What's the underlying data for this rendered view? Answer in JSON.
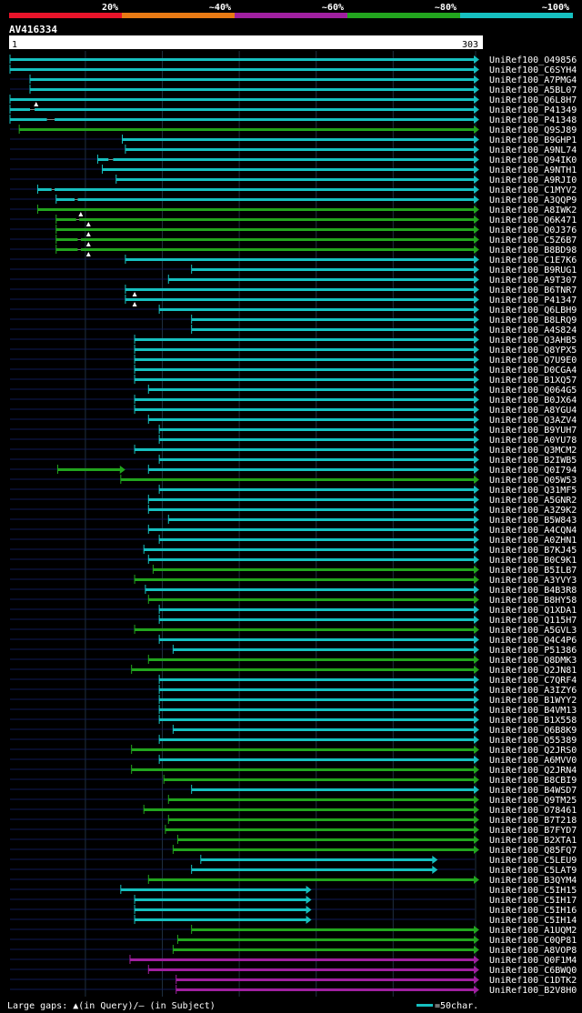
{
  "chart_data": {
    "type": "alignment-bars",
    "title": "AV416334",
    "legend": [
      {
        "label": "20%",
        "color": "#e8142a"
      },
      {
        "label": "~40%",
        "color": "#e87a14"
      },
      {
        "label": "~60%",
        "color": "#a020a0"
      },
      {
        "label": "~80%",
        "color": "#22a51e"
      },
      {
        "label": "~100%",
        "color": "#16c0c0"
      }
    ],
    "query_start": "1",
    "query_end": "303",
    "axis_max": 303,
    "tick_positions": [
      50,
      100,
      150,
      200,
      250
    ],
    "hits": [
      {
        "name": "UniRef100_O49856",
        "color": "#16c0c0",
        "s": 1,
        "e": 303
      },
      {
        "name": "UniRef100_C6SYH4",
        "color": "#16c0c0",
        "s": 1,
        "e": 303
      },
      {
        "name": "UniRef100_A7PMG4",
        "color": "#16c0c0",
        "s": 14,
        "e": 303
      },
      {
        "name": "UniRef100_A5BL07",
        "color": "#16c0c0",
        "s": 14,
        "e": 303
      },
      {
        "name": "UniRef100_Q6L8H7",
        "color": "#16c0c0",
        "s": 1,
        "e": 303,
        "qgap": 18
      },
      {
        "name": "UniRef100_P41349",
        "color": "#16c0c0",
        "s": 1,
        "e": 303,
        "sgap": [
          14,
          17
        ]
      },
      {
        "name": "UniRef100_P41348",
        "color": "#16c0c0",
        "s": 1,
        "e": 303,
        "sgap": [
          25,
          30
        ]
      },
      {
        "name": "UniRef100_Q9SJ89",
        "color": "#22a51e",
        "s": 7,
        "e": 303
      },
      {
        "name": "UniRef100_B9GHP1",
        "color": "#16c0c0",
        "s": 74,
        "e": 303
      },
      {
        "name": "UniRef100_A9NL74",
        "color": "#16c0c0",
        "s": 76,
        "e": 303
      },
      {
        "name": "UniRef100_Q94IK0",
        "color": "#16c0c0",
        "s": 58,
        "e": 303,
        "sgap": [
          65,
          68
        ]
      },
      {
        "name": "UniRef100_A9NTH1",
        "color": "#16c0c0",
        "s": 61,
        "e": 303
      },
      {
        "name": "UniRef100_A9RJI0",
        "color": "#16c0c0",
        "s": 70,
        "e": 303
      },
      {
        "name": "UniRef100_C1MYV2",
        "color": "#16c0c0",
        "s": 19,
        "e": 303,
        "sgap": [
          28,
          30
        ]
      },
      {
        "name": "UniRef100_A3QQP9",
        "color": "#16c0c0",
        "s": 31,
        "e": 303,
        "sgap": [
          43,
          45
        ]
      },
      {
        "name": "UniRef100_A8IWK2",
        "color": "#22a51e",
        "s": 19,
        "e": 303,
        "qgap": 47
      },
      {
        "name": "UniRef100_Q6K471",
        "color": "#22a51e",
        "s": 31,
        "e": 303,
        "qgap": 52,
        "sgap": [
          44,
          46
        ]
      },
      {
        "name": "UniRef100_Q0J376",
        "color": "#22a51e",
        "s": 31,
        "e": 303,
        "qgap": 52
      },
      {
        "name": "UniRef100_C5Z6B7",
        "color": "#22a51e",
        "s": 31,
        "e": 303,
        "qgap": 52,
        "sgap": [
          45,
          47
        ]
      },
      {
        "name": "UniRef100_B8BD98",
        "color": "#22a51e",
        "s": 31,
        "e": 303,
        "qgap": 52,
        "sgap": [
          45,
          47
        ]
      },
      {
        "name": "UniRef100_C1E7K6",
        "color": "#16c0c0",
        "s": 76,
        "e": 303
      },
      {
        "name": "UniRef100_B9RUG1",
        "color": "#16c0c0",
        "s": 119,
        "e": 303
      },
      {
        "name": "UniRef100_A9T307",
        "color": "#16c0c0",
        "s": 104,
        "e": 303
      },
      {
        "name": "UniRef100_B6TNR7",
        "color": "#16c0c0",
        "s": 76,
        "e": 303,
        "qgap": 82
      },
      {
        "name": "UniRef100_P41347",
        "color": "#16c0c0",
        "s": 76,
        "e": 303,
        "qgap": 82
      },
      {
        "name": "UniRef100_Q6LBH9",
        "color": "#16c0c0",
        "s": 98,
        "e": 303
      },
      {
        "name": "UniRef100_B8LRQ9",
        "color": "#16c0c0",
        "s": 119,
        "e": 303
      },
      {
        "name": "UniRef100_A4S824",
        "color": "#16c0c0",
        "s": 119,
        "e": 303
      },
      {
        "name": "UniRef100_Q3AHB5",
        "color": "#16c0c0",
        "s": 82,
        "e": 303
      },
      {
        "name": "UniRef100_Q8YPX5",
        "color": "#16c0c0",
        "s": 82,
        "e": 303
      },
      {
        "name": "UniRef100_Q7U9E0",
        "color": "#16c0c0",
        "s": 82,
        "e": 303
      },
      {
        "name": "UniRef100_D0CGA4",
        "color": "#16c0c0",
        "s": 82,
        "e": 303
      },
      {
        "name": "UniRef100_B1XQ57",
        "color": "#16c0c0",
        "s": 82,
        "e": 303
      },
      {
        "name": "UniRef100_Q064G5",
        "color": "#16c0c0",
        "s": 91,
        "e": 303
      },
      {
        "name": "UniRef100_B0JX64",
        "color": "#16c0c0",
        "s": 82,
        "e": 303
      },
      {
        "name": "UniRef100_A8YGU4",
        "color": "#16c0c0",
        "s": 82,
        "e": 303
      },
      {
        "name": "UniRef100_Q3AZV4",
        "color": "#16c0c0",
        "s": 91,
        "e": 303
      },
      {
        "name": "UniRef100_B9YUH7",
        "color": "#16c0c0",
        "s": 98,
        "e": 303
      },
      {
        "name": "UniRef100_A0YU78",
        "color": "#16c0c0",
        "s": 98,
        "e": 303
      },
      {
        "name": "UniRef100_Q3MCM2",
        "color": "#16c0c0",
        "s": 82,
        "e": 303
      },
      {
        "name": "UniRef100_B2IWB5",
        "color": "#16c0c0",
        "s": 98,
        "e": 303
      },
      {
        "name": "UniRef100_Q0I794",
        "color": "#22a51e",
        "s": 32,
        "e": 73
      },
      {
        "name": "UniRef100_Q0I794",
        "color": "#16c0c0",
        "s": 91,
        "e": 303
      },
      {
        "name": "UniRef100_Q05W53",
        "color": "#22a51e",
        "s": 73,
        "e": 303
      },
      {
        "name": "UniRef100_Q31MF5",
        "color": "#16c0c0",
        "s": 98,
        "e": 303
      },
      {
        "name": "UniRef100_A5GNR2",
        "color": "#16c0c0",
        "s": 91,
        "e": 303
      },
      {
        "name": "UniRef100_A3Z9K2",
        "color": "#16c0c0",
        "s": 91,
        "e": 303
      },
      {
        "name": "UniRef100_B5W843",
        "color": "#16c0c0",
        "s": 104,
        "e": 303
      },
      {
        "name": "UniRef100_A4CQN4",
        "color": "#16c0c0",
        "s": 91,
        "e": 303
      },
      {
        "name": "UniRef100_A0ZHN1",
        "color": "#16c0c0",
        "s": 98,
        "e": 303
      },
      {
        "name": "UniRef100_B7KJ45",
        "color": "#16c0c0",
        "s": 88,
        "e": 303
      },
      {
        "name": "UniRef100_B0C9K1",
        "color": "#16c0c0",
        "s": 91,
        "e": 303
      },
      {
        "name": "UniRef100_B5ILB7",
        "color": "#22a51e",
        "s": 94,
        "e": 303
      },
      {
        "name": "UniRef100_A3YVY3",
        "color": "#22a51e",
        "s": 82,
        "e": 303
      },
      {
        "name": "UniRef100_B4B3R8",
        "color": "#16c0c0",
        "s": 89,
        "e": 303
      },
      {
        "name": "UniRef100_B8HY58",
        "color": "#22a51e",
        "s": 91,
        "e": 303
      },
      {
        "name": "UniRef100_Q1XDA1",
        "color": "#16c0c0",
        "s": 98,
        "e": 303
      },
      {
        "name": "UniRef100_Q115H7",
        "color": "#16c0c0",
        "s": 98,
        "e": 303
      },
      {
        "name": "UniRef100_A5GVL3",
        "color": "#22a51e",
        "s": 82,
        "e": 303
      },
      {
        "name": "UniRef100_Q4C4P6",
        "color": "#16c0c0",
        "s": 98,
        "e": 303
      },
      {
        "name": "UniRef100_P51386",
        "color": "#16c0c0",
        "s": 107,
        "e": 303
      },
      {
        "name": "UniRef100_Q8DMK3",
        "color": "#22a51e",
        "s": 91,
        "e": 303
      },
      {
        "name": "UniRef100_Q2JN81",
        "color": "#22a51e",
        "s": 80,
        "e": 303
      },
      {
        "name": "UniRef100_C7QRF4",
        "color": "#16c0c0",
        "s": 98,
        "e": 303
      },
      {
        "name": "UniRef100_A3IZY6",
        "color": "#16c0c0",
        "s": 98,
        "e": 303
      },
      {
        "name": "UniRef100_B1WYY2",
        "color": "#16c0c0",
        "s": 98,
        "e": 303
      },
      {
        "name": "UniRef100_B4VM13",
        "color": "#16c0c0",
        "s": 98,
        "e": 303
      },
      {
        "name": "UniRef100_B1X558",
        "color": "#16c0c0",
        "s": 98,
        "e": 303
      },
      {
        "name": "UniRef100_Q6B8K9",
        "color": "#16c0c0",
        "s": 107,
        "e": 303
      },
      {
        "name": "UniRef100_Q55389",
        "color": "#16c0c0",
        "s": 98,
        "e": 303
      },
      {
        "name": "UniRef100_Q2JRS0",
        "color": "#22a51e",
        "s": 80,
        "e": 303
      },
      {
        "name": "UniRef100_A6MVV0",
        "color": "#16c0c0",
        "s": 98,
        "e": 303
      },
      {
        "name": "UniRef100_Q2JRN4",
        "color": "#22a51e",
        "s": 80,
        "e": 303
      },
      {
        "name": "UniRef100_B8CBI9",
        "color": "#22a51e",
        "s": 101,
        "e": 303
      },
      {
        "name": "UniRef100_B4WSD7",
        "color": "#16c0c0",
        "s": 119,
        "e": 303
      },
      {
        "name": "UniRef100_Q9TM25",
        "color": "#22a51e",
        "s": 104,
        "e": 303
      },
      {
        "name": "UniRef100_O78461",
        "color": "#22a51e",
        "s": 88,
        "e": 303
      },
      {
        "name": "UniRef100_B7T218",
        "color": "#22a51e",
        "s": 104,
        "e": 303
      },
      {
        "name": "UniRef100_B7FYD7",
        "color": "#22a51e",
        "s": 102,
        "e": 303
      },
      {
        "name": "UniRef100_B2XTA1",
        "color": "#22a51e",
        "s": 110,
        "e": 303
      },
      {
        "name": "UniRef100_Q85FQ7",
        "color": "#22a51e",
        "s": 107,
        "e": 303
      },
      {
        "name": "UniRef100_C5LEU9",
        "color": "#16c0c0",
        "s": 125,
        "e": 276
      },
      {
        "name": "UniRef100_C5LAT9",
        "color": "#16c0c0",
        "s": 119,
        "e": 276
      },
      {
        "name": "UniRef100_B3QYM4",
        "color": "#22a51e",
        "s": 91,
        "e": 303
      },
      {
        "name": "UniRef100_C5IH15",
        "color": "#16c0c0",
        "s": 73,
        "e": 194
      },
      {
        "name": "UniRef100_C5IH17",
        "color": "#16c0c0",
        "s": 82,
        "e": 194
      },
      {
        "name": "UniRef100_C5IH16",
        "color": "#16c0c0",
        "s": 82,
        "e": 194
      },
      {
        "name": "UniRef100_C5IH14",
        "color": "#16c0c0",
        "s": 82,
        "e": 194
      },
      {
        "name": "UniRef100_A1UQM2",
        "color": "#22a51e",
        "s": 119,
        "e": 303
      },
      {
        "name": "UniRef100_C0QP81",
        "color": "#22a51e",
        "s": 110,
        "e": 303
      },
      {
        "name": "UniRef100_A8VOP8",
        "color": "#22a51e",
        "s": 107,
        "e": 303
      },
      {
        "name": "UniRef100_Q0F1M4",
        "color": "#a020a0",
        "s": 79,
        "e": 303
      },
      {
        "name": "UniRef100_C6BWQ0",
        "color": "#a020a0",
        "s": 91,
        "e": 303
      },
      {
        "name": "UniRef100_C1DTK2",
        "color": "#a020a0",
        "s": 109,
        "e": 303
      },
      {
        "name": "UniRef100_B2V8H0",
        "color": "#a020a0",
        "s": 109,
        "e": 303
      }
    ],
    "footer_left": "Large gaps: ▲(in Query)/— (in Subject)",
    "footer_right": "=50char."
  }
}
